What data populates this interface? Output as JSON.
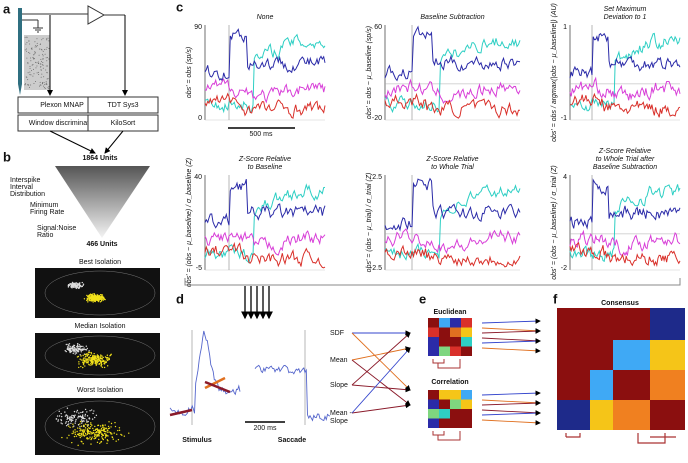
{
  "panel_labels": [
    "a",
    "b",
    "c",
    "d",
    "e",
    "f"
  ],
  "a": {
    "boxes": [
      [
        "Plexon MNAP",
        "Window discriminator"
      ],
      [
        "TDT Sys3",
        "KiloSort"
      ]
    ]
  },
  "b": {
    "top": "1864 Units",
    "bottom": "466 Units",
    "criteria": [
      [
        "Interspike",
        "Interval",
        "Distribution"
      ],
      [
        "Minimum",
        "Firing Rate"
      ],
      [
        "Signal:Noise",
        "Ratio"
      ]
    ],
    "images": [
      "Best Isolation",
      "Median Isolation",
      "Worst Isolation"
    ]
  },
  "c": {
    "plots": [
      {
        "title": [
          "None"
        ],
        "yticks": [
          90,
          0
        ],
        "ylabel": "obs' = obs (sp/s)"
      },
      {
        "title": [
          "Baseline Subtraction"
        ],
        "yticks": [
          60,
          -20
        ],
        "ylabel": "obs' = obs − μ_baseline (sp/s)"
      },
      {
        "title": [
          "Set Maximum",
          "Deviation to 1"
        ],
        "yticks": [
          1,
          -1
        ],
        "ylabel": "obs' = obs / argmax(|obs − μ_baseline|) (AU)"
      },
      {
        "title": [
          "Z-Score Relative",
          "to Baseline"
        ],
        "yticks": [
          40,
          -5
        ],
        "ylabel": "obs' = (obs − μ_baseline) / σ_baseline (Z)"
      },
      {
        "title": [
          "Z-Score Relative",
          "to Whole Trial"
        ],
        "yticks": [
          2.5,
          -2.5
        ],
        "ylabel": "obs' = (obs − μ_trial) / σ_trial (Z)"
      },
      {
        "title": [
          "Z-Score Relative",
          "to Whole Trial after",
          "Baseline Subtraction"
        ],
        "yticks": [
          4,
          -2
        ],
        "ylabel": "obs' = (obs − μ_baseline) / σ_trial (Z)"
      }
    ],
    "scalebar": "500 ms"
  },
  "d": {
    "stimulus": "Stimulus",
    "saccade": "Saccade",
    "scalebar": "200 ms",
    "features": [
      [
        "SDF"
      ],
      [
        "Mean"
      ],
      [
        "Slope"
      ],
      [
        "Mean -",
        "Slope"
      ]
    ]
  },
  "e": {
    "titles": [
      "Euclidean",
      "Correlation"
    ]
  },
  "f": {
    "title": "Consensus"
  }
}
